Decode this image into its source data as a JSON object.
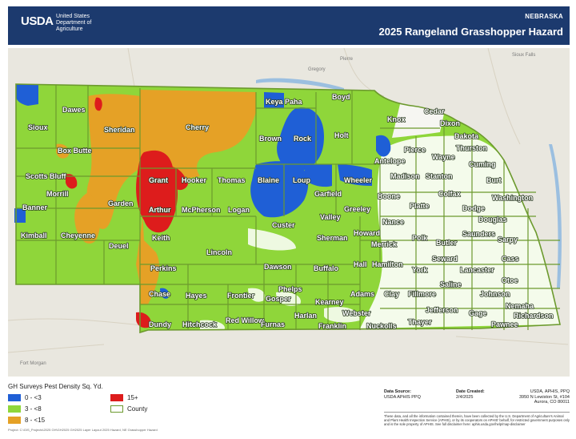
{
  "header": {
    "logo_text": "USDA",
    "dept_line1": "United States",
    "dept_line2": "Department of",
    "dept_line3": "Agriculture",
    "state": "NEBRASKA",
    "title": "2025 Rangeland Grasshopper Hazard"
  },
  "colors": {
    "header_bg": "#1c3a6e",
    "density_0_3": "#1f5fd6",
    "density_3_8": "#8fd63a",
    "density_8_15": "#e5a126",
    "density_15_plus": "#dd1c1c",
    "county_outline": "#6c9a2e",
    "basemap": "#e9e7df"
  },
  "counties": [
    "Sioux",
    "Dawes",
    "Sheridan",
    "Cherry",
    "Keya Paha",
    "Boyd",
    "Knox",
    "Cedar",
    "Dixon",
    "Dakota",
    "Thurston",
    "Wayne",
    "Pierce",
    "Antelope",
    "Holt",
    "Rock",
    "Brown",
    "Box Butte",
    "Scotts Bluff",
    "Morrill",
    "Garden",
    "Grant",
    "Hooker",
    "Thomas",
    "Blaine",
    "Loup",
    "Garfield",
    "Wheeler",
    "Boone",
    "Madison",
    "Stanton",
    "Cuming",
    "Burt",
    "Banner",
    "Arthur",
    "McPherson",
    "Logan",
    "Custer",
    "Valley",
    "Greeley",
    "Nance",
    "Platte",
    "Colfax",
    "Dodge",
    "Washington",
    "Douglas",
    "Kimball",
    "Cheyenne",
    "Deuel",
    "Keith",
    "Lincoln",
    "Sherman",
    "Howard",
    "Merrick",
    "Polk",
    "Butler",
    "Saunders",
    "Sarpy",
    "Perkins",
    "Dawson",
    "Buffalo",
    "Hall",
    "Hamilton",
    "York",
    "Seward",
    "Lancaster",
    "Cass",
    "Otoe",
    "Chase",
    "Hayes",
    "Frontier",
    "Gosper",
    "Phelps",
    "Kearney",
    "Adams",
    "Clay",
    "Fillmore",
    "Saline",
    "Johnson",
    "Nemaha",
    "Dundy",
    "Hitchcock",
    "Red Willow",
    "Furnas",
    "Harlan",
    "Franklin",
    "Webster",
    "Nuckolls",
    "Thayer",
    "Jefferson",
    "Gage",
    "Pawnee",
    "Richardson"
  ],
  "basemap_labels": [
    "Pierre",
    "Gregory",
    "Fort Morgan",
    "Sioux Falls"
  ],
  "legend": {
    "title": "GH Surveys Pest Density Sq. Yd.",
    "items": [
      {
        "label": "0 - <3",
        "color": "#1f5fd6"
      },
      {
        "label": "3 - <8",
        "color": "#8fd63a"
      },
      {
        "label": "8 - <15",
        "color": "#e5a126"
      },
      {
        "label": "15+",
        "color": "#dd1c1c"
      },
      {
        "label": "County",
        "color": "#6c9a2e",
        "outline": true
      }
    ],
    "project_path": "Project: C:\\GIS_Projects\\2025 GH\\GH2025 GH2025 Layer Layout 2025 Hazard, NE    Grasshopper Hazard"
  },
  "info": {
    "source_label": "Data Source:",
    "source_value": "USDA APHIS PPQ",
    "date_label": "Date Created:",
    "date_value": "2/4/2025",
    "contact_line1": "USDA, APHIS, PPQ",
    "contact_line2": "3950 N Lewiston St, #104",
    "contact_line3": "Aurora, CO 80011",
    "disclaimer": "These data, and all the information contained therein, have been collected by the U.S. Department of Agriculture's Animal and Plant Health Inspection Service (APHIS), or by its cooperators on APHIS' behalf, for restricted government purposes only and is the sole property of APHIS. See full disclaimer here: aphis.usda.gov/help/map-disclaimer"
  }
}
